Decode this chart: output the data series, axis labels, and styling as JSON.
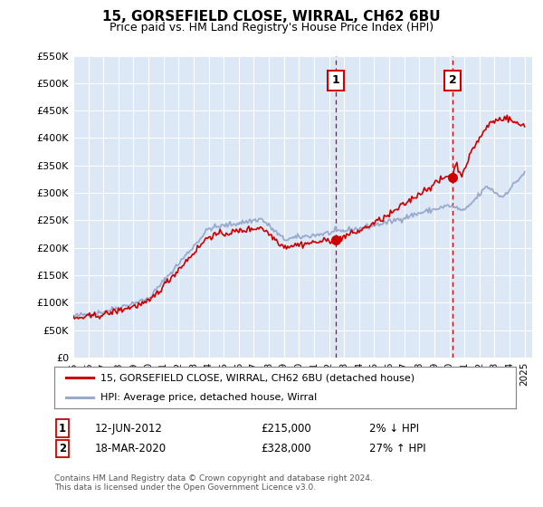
{
  "title": "15, GORSEFIELD CLOSE, WIRRAL, CH62 6BU",
  "subtitle": "Price paid vs. HM Land Registry's House Price Index (HPI)",
  "ylabel_ticks": [
    "£0",
    "£50K",
    "£100K",
    "£150K",
    "£200K",
    "£250K",
    "£300K",
    "£350K",
    "£400K",
    "£450K",
    "£500K",
    "£550K"
  ],
  "ylim": [
    0,
    550000
  ],
  "xlim_start": 1995.0,
  "xlim_end": 2025.5,
  "sale1": {
    "date_x": 2012.44,
    "price": 215000,
    "label": "1",
    "date_str": "12-JUN-2012",
    "price_str": "£215,000",
    "pct": "2% ↓ HPI"
  },
  "sale2": {
    "date_x": 2020.21,
    "price": 328000,
    "label": "2",
    "date_str": "18-MAR-2020",
    "price_str": "£328,000",
    "pct": "27% ↑ HPI"
  },
  "legend_line1": "15, GORSEFIELD CLOSE, WIRRAL, CH62 6BU (detached house)",
  "legend_line2": "HPI: Average price, detached house, Wirral",
  "footnote": "Contains HM Land Registry data © Crown copyright and database right 2024.\nThis data is licensed under the Open Government Licence v3.0.",
  "plot_bg_color": "#dce8f5",
  "grid_color": "#ffffff",
  "red_color": "#cc0000",
  "blue_color": "#99aacc",
  "marker_box_color": "#cc0000",
  "dashed_line_color": "#cc0000"
}
